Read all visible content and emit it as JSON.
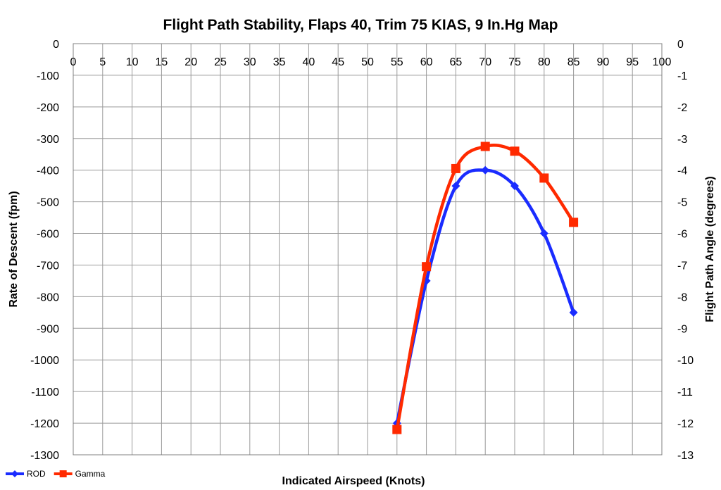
{
  "chart_data": {
    "type": "line",
    "title": "Flight Path Stability, Flaps 40, Trim 75 KIAS, 9 In.Hg Map",
    "xlabel": "Indicated Airspeed (Knots)",
    "ylabel": "Rate of Descent (fpm)",
    "y2label": "Flight Path Angle (degrees)",
    "xlim": [
      0,
      100
    ],
    "ylim": [
      -1300,
      0
    ],
    "y2lim": [
      -13,
      0
    ],
    "xticks": [
      "0",
      "5",
      "10",
      "15",
      "20",
      "25",
      "30",
      "35",
      "40",
      "45",
      "50",
      "55",
      "60",
      "65",
      "70",
      "75",
      "80",
      "85",
      "90",
      "95",
      "100"
    ],
    "yticks": [
      "0",
      "-100",
      "-200",
      "-300",
      "-400",
      "-500",
      "-600",
      "-700",
      "-800",
      "-900",
      "-1000",
      "-1100",
      "-1200",
      "-1300"
    ],
    "y2ticks": [
      "0",
      "-1",
      "-2",
      "-3",
      "-4",
      "-5",
      "-6",
      "-7",
      "-8",
      "-9",
      "-10",
      "-11",
      "-12",
      "-13"
    ],
    "grid": true,
    "x_axis_position": "top",
    "legend_position": "bottom-left",
    "series": [
      {
        "name": "ROD",
        "axis": "left",
        "color": "#1a2cff",
        "marker": "diamond",
        "x": [
          55,
          60,
          65,
          70,
          75,
          80,
          85
        ],
        "y": [
          -1200,
          -750,
          -450,
          -400,
          -450,
          -600,
          -850
        ]
      },
      {
        "name": "Gamma",
        "axis": "right",
        "color": "#ff2a00",
        "marker": "square",
        "x": [
          55,
          60,
          65,
          70,
          75,
          80,
          85
        ],
        "y": [
          -12.2,
          -7.05,
          -3.95,
          -3.25,
          -3.4,
          -4.25,
          -5.65
        ]
      }
    ]
  }
}
